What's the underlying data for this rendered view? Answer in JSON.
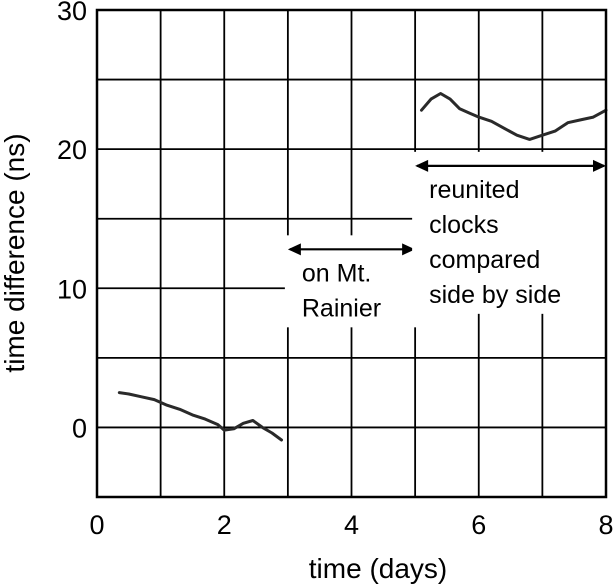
{
  "chart_data": {
    "type": "line",
    "title": "",
    "xlabel": "time (days)",
    "ylabel": "time difference (ns)",
    "xlim": [
      0,
      8
    ],
    "ylim": [
      -5,
      30
    ],
    "xticks": [
      0,
      2,
      4,
      6,
      8
    ],
    "yticks": [
      0,
      10,
      20,
      30
    ],
    "grid": true,
    "grid_x_step": 1,
    "grid_y_step": 5,
    "line_color": "#2a2a2a",
    "series": [
      {
        "x": [
          0.35,
          0.5,
          0.7,
          0.9,
          1.1,
          1.3,
          1.5,
          1.7,
          1.9,
          2.0,
          2.15,
          2.3,
          2.45,
          2.6,
          2.75,
          2.9
        ],
        "y": [
          2.5,
          2.4,
          2.2,
          2.0,
          1.6,
          1.3,
          0.9,
          0.6,
          0.2,
          -0.2,
          -0.1,
          0.3,
          0.5,
          0.0,
          -0.4,
          -0.9
        ]
      },
      {
        "x": [
          5.1,
          5.25,
          5.4,
          5.55,
          5.7,
          5.85,
          6.0,
          6.2,
          6.4,
          6.6,
          6.8,
          7.0,
          7.2,
          7.4,
          7.6,
          7.8,
          8.0
        ],
        "y": [
          22.8,
          23.6,
          24.0,
          23.6,
          22.9,
          22.6,
          22.3,
          22.0,
          21.5,
          21.0,
          20.7,
          21.0,
          21.3,
          21.9,
          22.1,
          22.3,
          22.8
        ]
      }
    ],
    "annotations": [
      {
        "text_lines": [
          "on Mt.",
          "Rainier"
        ],
        "span": [
          3,
          5
        ],
        "arrow_y": 12.8
      },
      {
        "text_lines": [
          "reunited",
          "clocks",
          "compared",
          "side by side"
        ],
        "span": [
          5,
          8
        ],
        "arrow_y": 18.8
      }
    ]
  }
}
